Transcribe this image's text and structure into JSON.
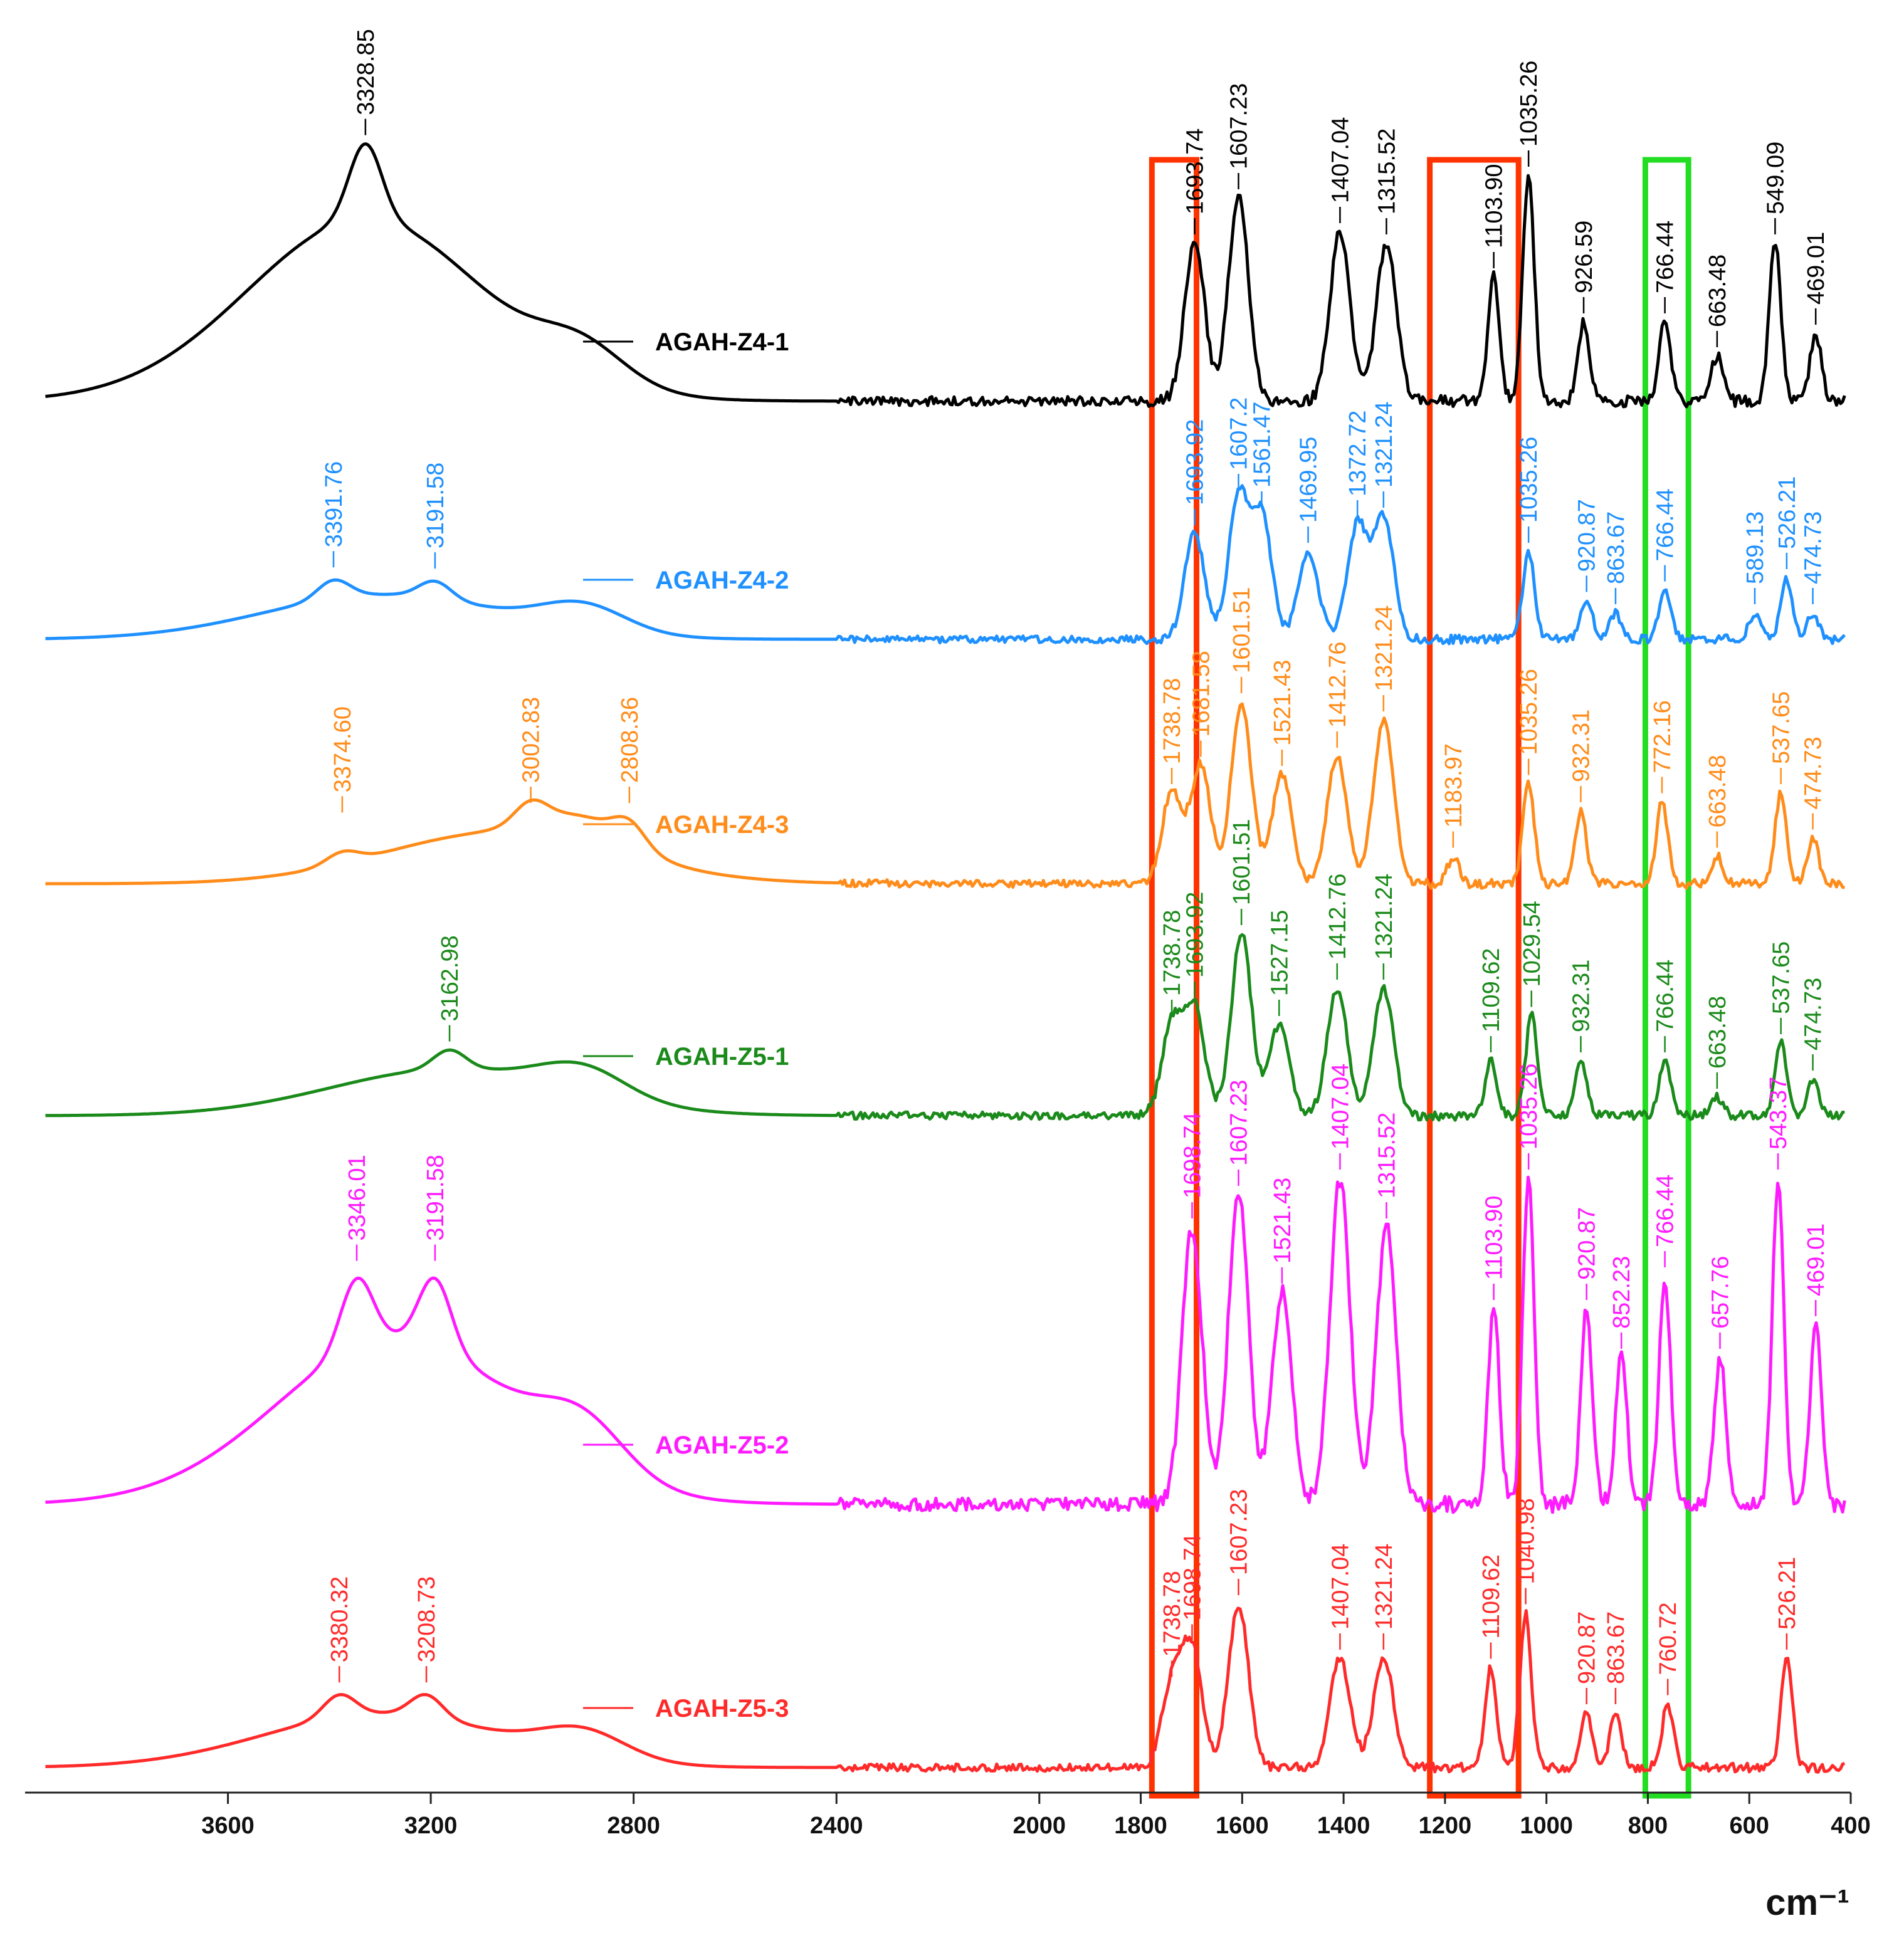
{
  "chart_data": {
    "type": "line",
    "title": "",
    "xlabel": "cm⁻¹",
    "ylabel": "",
    "xlim": [
      4000,
      400
    ],
    "x_reversed": true,
    "grid": false,
    "legend_position": "inline-right-of-center",
    "x_ticks": [
      3600,
      3200,
      2800,
      2400,
      2000,
      1800,
      1600,
      1400,
      1200,
      1000,
      800,
      600,
      400
    ],
    "x_tick_labels": [
      "3600",
      "3200",
      "2800",
      "2400",
      "2000",
      "1800",
      "1600",
      "1400",
      "1200",
      "1000",
      "800",
      "600",
      "400"
    ],
    "highlight_regions": [
      {
        "name": "red-box-carbonyl",
        "x_range": [
          1778,
          1690
        ],
        "color": "#ff3300"
      },
      {
        "name": "red-box-1100",
        "x_range": [
          1230,
          1055
        ],
        "color": "#ff3300"
      },
      {
        "name": "green-box-770",
        "x_range": [
          805,
          720
        ],
        "color": "#22dd22"
      }
    ],
    "series": [
      {
        "name": "AGAH-Z4-1",
        "color": "#000000",
        "peaks": [
          {
            "x": 3328.85,
            "label": "3328.85",
            "h": 0.95
          },
          {
            "x": 1693.74,
            "label": "1693.74",
            "h": 0.7
          },
          {
            "x": 1607.23,
            "label": "1607.23",
            "h": 0.9
          },
          {
            "x": 1407.04,
            "label": "1407.04",
            "h": 0.75
          },
          {
            "x": 1315.52,
            "label": "1315.52",
            "h": 0.7
          },
          {
            "x": 1103.9,
            "label": "1103.90",
            "h": 0.55
          },
          {
            "x": 1035.26,
            "label": "1035.26",
            "h": 1.0
          },
          {
            "x": 926.59,
            "label": "926.59",
            "h": 0.35
          },
          {
            "x": 766.44,
            "label": "766.44",
            "h": 0.35
          },
          {
            "x": 663.48,
            "label": "663.48",
            "h": 0.2
          },
          {
            "x": 549.09,
            "label": "549.09",
            "h": 0.7
          },
          {
            "x": 469.01,
            "label": "469.01",
            "h": 0.3
          }
        ]
      },
      {
        "name": "AGAH-Z4-2",
        "color": "#1e90ff",
        "peaks": [
          {
            "x": 3391.76,
            "label": "3391.76",
            "h": 0.3
          },
          {
            "x": 3191.58,
            "label": "3191.58",
            "h": 0.28
          },
          {
            "x": 1693.92,
            "label": "1693.92",
            "h": 0.6
          },
          {
            "x": 1607.2,
            "label": "1607.2",
            "h": 0.8
          },
          {
            "x": 1561.47,
            "label": "1561.47",
            "h": 0.7
          },
          {
            "x": 1469.95,
            "label": "1469.95",
            "h": 0.5
          },
          {
            "x": 1372.72,
            "label": "1372.72",
            "h": 0.65
          },
          {
            "x": 1321.24,
            "label": "1321.24",
            "h": 0.7
          },
          {
            "x": 1035.26,
            "label": "1035.26",
            "h": 0.5
          },
          {
            "x": 920.87,
            "label": "920.87",
            "h": 0.22
          },
          {
            "x": 863.67,
            "label": "863.67",
            "h": 0.15
          },
          {
            "x": 766.44,
            "label": "766.44",
            "h": 0.28
          },
          {
            "x": 589.13,
            "label": "589.13",
            "h": 0.15
          },
          {
            "x": 526.21,
            "label": "526.21",
            "h": 0.35
          },
          {
            "x": 474.73,
            "label": "474.73",
            "h": 0.15
          }
        ]
      },
      {
        "name": "AGAH-Z4-3",
        "color": "#ff8c1a",
        "peaks": [
          {
            "x": 3374.6,
            "label": "3374.60",
            "h": 0.18
          },
          {
            "x": 3002.83,
            "label": "3002.83",
            "h": 0.33
          },
          {
            "x": 2808.36,
            "label": "2808.36",
            "h": 0.33
          },
          {
            "x": 1738.78,
            "label": "1738.78",
            "h": 0.5
          },
          {
            "x": 1681.58,
            "label": "1681.58",
            "h": 0.65
          },
          {
            "x": 1601.51,
            "label": "1601.51",
            "h": 1.0
          },
          {
            "x": 1521.43,
            "label": "1521.43",
            "h": 0.6
          },
          {
            "x": 1412.76,
            "label": "1412.76",
            "h": 0.7
          },
          {
            "x": 1321.24,
            "label": "1321.24",
            "h": 0.9
          },
          {
            "x": 1183.97,
            "label": "1183.97",
            "h": 0.15
          },
          {
            "x": 1035.26,
            "label": "1035.26",
            "h": 0.55
          },
          {
            "x": 932.31,
            "label": "932.31",
            "h": 0.4
          },
          {
            "x": 772.16,
            "label": "772.16",
            "h": 0.45
          },
          {
            "x": 663.48,
            "label": "663.48",
            "h": 0.15
          },
          {
            "x": 537.65,
            "label": "537.65",
            "h": 0.5
          },
          {
            "x": 474.73,
            "label": "474.73",
            "h": 0.25
          }
        ]
      },
      {
        "name": "AGAH-Z5-1",
        "color": "#1a8a1a",
        "peaks": [
          {
            "x": 3162.98,
            "label": "3162.98",
            "h": 0.3
          },
          {
            "x": 1738.78,
            "label": "1738.78",
            "h": 0.5
          },
          {
            "x": 1693.92,
            "label": "1693.92",
            "h": 0.6
          },
          {
            "x": 1601.51,
            "label": "1601.51",
            "h": 1.0
          },
          {
            "x": 1527.15,
            "label": "1527.15",
            "h": 0.5
          },
          {
            "x": 1412.76,
            "label": "1412.76",
            "h": 0.7
          },
          {
            "x": 1321.24,
            "label": "1321.24",
            "h": 0.7
          },
          {
            "x": 1109.62,
            "label": "1109.62",
            "h": 0.3
          },
          {
            "x": 1029.54,
            "label": "1029.54",
            "h": 0.55
          },
          {
            "x": 932.31,
            "label": "932.31",
            "h": 0.3
          },
          {
            "x": 766.44,
            "label": "766.44",
            "h": 0.3
          },
          {
            "x": 663.48,
            "label": "663.48",
            "h": 0.1
          },
          {
            "x": 537.65,
            "label": "537.65",
            "h": 0.4
          },
          {
            "x": 474.73,
            "label": "474.73",
            "h": 0.2
          }
        ]
      },
      {
        "name": "AGAH-Z5-2",
        "color": "#ff1aff",
        "peaks": [
          {
            "x": 3346.01,
            "label": "3346.01",
            "h": 0.6
          },
          {
            "x": 3191.58,
            "label": "3191.58",
            "h": 0.6
          },
          {
            "x": 1698.74,
            "label": "1698.74",
            "h": 0.85
          },
          {
            "x": 1607.23,
            "label": "1607.23",
            "h": 0.95
          },
          {
            "x": 1521.43,
            "label": "1521.43",
            "h": 0.65
          },
          {
            "x": 1407.04,
            "label": "1407.04",
            "h": 1.0
          },
          {
            "x": 1315.52,
            "label": "1315.52",
            "h": 0.85
          },
          {
            "x": 1103.9,
            "label": "1103.90",
            "h": 0.6
          },
          {
            "x": 1035.26,
            "label": "1035.26",
            "h": 1.0
          },
          {
            "x": 920.87,
            "label": "920.87",
            "h": 0.6
          },
          {
            "x": 852.23,
            "label": "852.23",
            "h": 0.45
          },
          {
            "x": 766.44,
            "label": "766.44",
            "h": 0.7
          },
          {
            "x": 657.76,
            "label": "657.76",
            "h": 0.45
          },
          {
            "x": 543.37,
            "label": "543.37",
            "h": 1.0
          },
          {
            "x": 469.01,
            "label": "469.01",
            "h": 0.55
          }
        ]
      },
      {
        "name": "AGAH-Z5-3",
        "color": "#ff2a2a",
        "peaks": [
          {
            "x": 3380.32,
            "label": "3380.32",
            "h": 0.35
          },
          {
            "x": 3208.73,
            "label": "3208.73",
            "h": 0.35
          },
          {
            "x": 1738.78,
            "label": "1738.78",
            "h": 0.45
          },
          {
            "x": 1698.74,
            "label": "1698.74",
            "h": 0.65
          },
          {
            "x": 1607.23,
            "label": "1607.23",
            "h": 0.9
          },
          {
            "x": 1407.04,
            "label": "1407.04",
            "h": 0.6
          },
          {
            "x": 1321.24,
            "label": "1321.24",
            "h": 0.6
          },
          {
            "x": 1109.62,
            "label": "1109.62",
            "h": 0.55
          },
          {
            "x": 1040.98,
            "label": "1040.98",
            "h": 0.85
          },
          {
            "x": 920.87,
            "label": "920.87",
            "h": 0.3
          },
          {
            "x": 863.67,
            "label": "863.67",
            "h": 0.3
          },
          {
            "x": 760.72,
            "label": "760.72",
            "h": 0.35
          },
          {
            "x": 526.21,
            "label": "526.21",
            "h": 0.6
          }
        ]
      }
    ]
  }
}
